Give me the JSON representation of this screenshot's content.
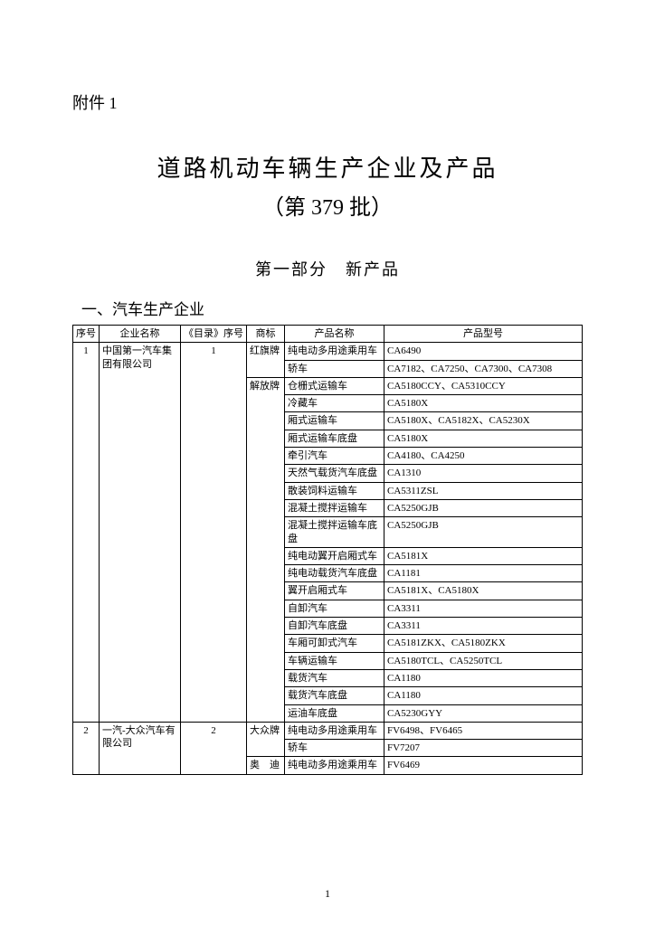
{
  "attachment_label": "附件 1",
  "main_title": "道路机动车辆生产企业及产品",
  "batch_number": "（第 379 批）",
  "section_title": "第一部分　新产品",
  "subsection": "一、汽车生产企业",
  "headers": {
    "seq": "序号",
    "company": "企业名称",
    "catalog": "《目录》序号",
    "brand": "商标",
    "product": "产品名称",
    "model": "产品型号"
  },
  "rows": [
    {
      "seq": "1",
      "company": "中国第一汽车集团有限公司",
      "catalog": "1",
      "brand": "红旗牌",
      "product": "纯电动多用途乘用车",
      "model": "CA6490"
    },
    {
      "seq": "",
      "company": "",
      "catalog": "",
      "brand": "",
      "product": "轿车",
      "model": "CA7182、CA7250、CA7300、CA7308"
    },
    {
      "seq": "",
      "company": "",
      "catalog": "",
      "brand": "解放牌",
      "product": "仓栅式运输车",
      "model": "CA5180CCY、CA5310CCY"
    },
    {
      "seq": "",
      "company": "",
      "catalog": "",
      "brand": "",
      "product": "冷藏车",
      "model": "CA5180X"
    },
    {
      "seq": "",
      "company": "",
      "catalog": "",
      "brand": "",
      "product": "厢式运输车",
      "model": "CA5180X、CA5182X、CA5230X"
    },
    {
      "seq": "",
      "company": "",
      "catalog": "",
      "brand": "",
      "product": "厢式运输车底盘",
      "model": "CA5180X"
    },
    {
      "seq": "",
      "company": "",
      "catalog": "",
      "brand": "",
      "product": "牵引汽车",
      "model": "CA4180、CA4250"
    },
    {
      "seq": "",
      "company": "",
      "catalog": "",
      "brand": "",
      "product": "天然气载货汽车底盘",
      "model": "CA1310"
    },
    {
      "seq": "",
      "company": "",
      "catalog": "",
      "brand": "",
      "product": "散装饲料运输车",
      "model": "CA5311ZSL"
    },
    {
      "seq": "",
      "company": "",
      "catalog": "",
      "brand": "",
      "product": "混凝土搅拌运输车",
      "model": "CA5250GJB"
    },
    {
      "seq": "",
      "company": "",
      "catalog": "",
      "brand": "",
      "product": "混凝土搅拌运输车底盘",
      "model": "CA5250GJB"
    },
    {
      "seq": "",
      "company": "",
      "catalog": "",
      "brand": "",
      "product": "纯电动翼开启厢式车",
      "model": "CA5181X"
    },
    {
      "seq": "",
      "company": "",
      "catalog": "",
      "brand": "",
      "product": "纯电动载货汽车底盘",
      "model": "CA1181"
    },
    {
      "seq": "",
      "company": "",
      "catalog": "",
      "brand": "",
      "product": "翼开启厢式车",
      "model": "CA5181X、CA5180X"
    },
    {
      "seq": "",
      "company": "",
      "catalog": "",
      "brand": "",
      "product": "自卸汽车",
      "model": "CA3311"
    },
    {
      "seq": "",
      "company": "",
      "catalog": "",
      "brand": "",
      "product": "自卸汽车底盘",
      "model": "CA3311"
    },
    {
      "seq": "",
      "company": "",
      "catalog": "",
      "brand": "",
      "product": "车厢可卸式汽车",
      "model": "CA5181ZKX、CA5180ZKX"
    },
    {
      "seq": "",
      "company": "",
      "catalog": "",
      "brand": "",
      "product": "车辆运输车",
      "model": "CA5180TCL、CA5250TCL"
    },
    {
      "seq": "",
      "company": "",
      "catalog": "",
      "brand": "",
      "product": "载货汽车",
      "model": "CA1180"
    },
    {
      "seq": "",
      "company": "",
      "catalog": "",
      "brand": "",
      "product": "载货汽车底盘",
      "model": "CA1180"
    },
    {
      "seq": "",
      "company": "",
      "catalog": "",
      "brand": "",
      "product": "运油车底盘",
      "model": "CA5230GYY"
    },
    {
      "seq": "2",
      "company": "一汽-大众汽车有限公司",
      "catalog": "2",
      "brand": "大众牌",
      "product": "纯电动多用途乘用车",
      "model": "FV6498、FV6465"
    },
    {
      "seq": "",
      "company": "",
      "catalog": "",
      "brand": "",
      "product": "轿车",
      "model": "FV7207"
    },
    {
      "seq": "",
      "company": "",
      "catalog": "",
      "brand": "奥　迪",
      "product": "纯电动多用途乘用车",
      "model": "FV6469"
    }
  ],
  "page_number": "1"
}
